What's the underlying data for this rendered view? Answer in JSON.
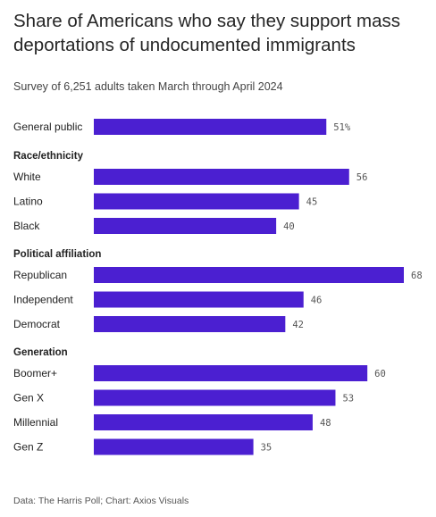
{
  "title": "Share of Americans who say they support mass deportations of undocumented immigrants",
  "subtitle": "Survey of 6,251 adults taken March through April 2024",
  "source": "Data: The Harris Poll; Chart: Axios Visuals",
  "colors": {
    "bar": "#4b1fd1",
    "text": "#222222",
    "value": "#555555"
  },
  "chart_data": {
    "type": "bar",
    "orientation": "horizontal",
    "xlim": [
      0,
      68
    ],
    "grid": false,
    "groups": [
      {
        "heading": "",
        "rows": [
          {
            "label": "General public",
            "value": 51,
            "display": "51%"
          }
        ]
      },
      {
        "heading": "Race/ethnicity",
        "rows": [
          {
            "label": "White",
            "value": 56,
            "display": "56"
          },
          {
            "label": "Latino",
            "value": 45,
            "display": "45"
          },
          {
            "label": "Black",
            "value": 40,
            "display": "40"
          }
        ]
      },
      {
        "heading": "Political affiliation",
        "rows": [
          {
            "label": "Republican",
            "value": 68,
            "display": "68"
          },
          {
            "label": "Independent",
            "value": 46,
            "display": "46"
          },
          {
            "label": "Democrat",
            "value": 42,
            "display": "42"
          }
        ]
      },
      {
        "heading": "Generation",
        "rows": [
          {
            "label": "Boomer+",
            "value": 60,
            "display": "60"
          },
          {
            "label": "Gen X",
            "value": 53,
            "display": "53"
          },
          {
            "label": "Millennial",
            "value": 48,
            "display": "48"
          },
          {
            "label": "Gen Z",
            "value": 35,
            "display": "35"
          }
        ]
      }
    ]
  }
}
